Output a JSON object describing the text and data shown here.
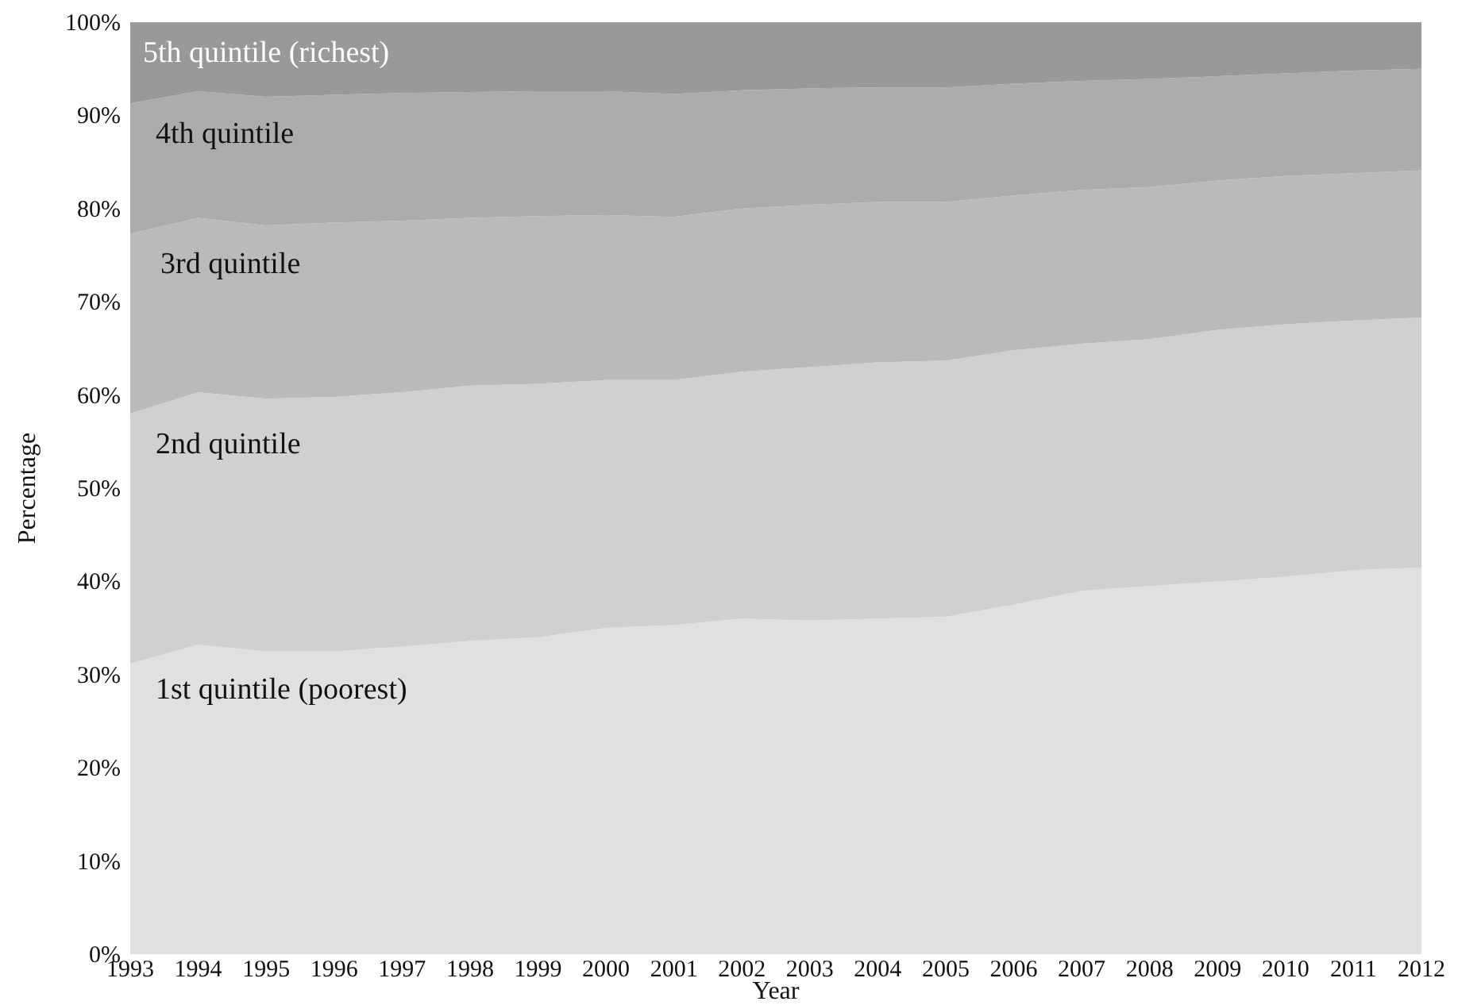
{
  "chart_data": {
    "type": "area",
    "stacked": true,
    "xlabel": "Year",
    "ylabel": "Percentage",
    "x": [
      1993,
      1994,
      1995,
      1996,
      1997,
      1998,
      1999,
      2000,
      2001,
      2002,
      2003,
      2004,
      2005,
      2006,
      2007,
      2008,
      2009,
      2010,
      2011,
      2012
    ],
    "xlim": [
      1993,
      2012
    ],
    "xticks": [
      1993,
      1994,
      1995,
      1996,
      1997,
      1998,
      1999,
      2000,
      2001,
      2002,
      2003,
      2004,
      2005,
      2006,
      2007,
      2008,
      2009,
      2010,
      2011,
      2012
    ],
    "ylim": [
      0,
      100
    ],
    "yticks": [
      {
        "value": 0,
        "label": "0%"
      },
      {
        "value": 10,
        "label": "10%"
      },
      {
        "value": 20,
        "label": "20%"
      },
      {
        "value": 30,
        "label": "30%"
      },
      {
        "value": 40,
        "label": "40%"
      },
      {
        "value": 50,
        "label": "50%"
      },
      {
        "value": 60,
        "label": "60%"
      },
      {
        "value": 70,
        "label": "70%"
      },
      {
        "value": 80,
        "label": "80%"
      },
      {
        "value": 90,
        "label": "90%"
      },
      {
        "value": 100,
        "label": "100%"
      }
    ],
    "grid": false,
    "legend": false,
    "series": [
      {
        "name": "1st quintile (poorest)",
        "color": "#e0e0e0",
        "values": [
          31.2,
          33.2,
          32.5,
          32.5,
          33,
          33.6,
          34,
          35,
          35.3,
          36,
          35.8,
          36,
          36.2,
          37.5,
          39,
          39.5,
          40,
          40.5,
          41.2,
          41.5
        ]
      },
      {
        "name": "2nd quintile",
        "color": "#cfd0cf",
        "values": [
          26.8,
          27.1,
          27.1,
          27.3,
          27.3,
          27.4,
          27.2,
          26.6,
          26.3,
          26.5,
          27.2,
          27.5,
          27.5,
          27.3,
          26.5,
          26.5,
          27,
          27.1,
          26.8,
          26.8
        ]
      },
      {
        "name": "3rd quintile",
        "color": "#bababa",
        "values": [
          19.3,
          18.7,
          18.6,
          18.7,
          18.4,
          18,
          18,
          17.7,
          17.5,
          17.5,
          17.4,
          17.2,
          17,
          16.6,
          16.5,
          16.3,
          16,
          15.9,
          15.8,
          15.8
        ]
      },
      {
        "name": "4th quintile",
        "color": "#acacac",
        "values": [
          14,
          13.6,
          13.8,
          13.7,
          13.7,
          13.5,
          13.4,
          13.3,
          13.2,
          12.7,
          12.5,
          12.3,
          12.3,
          12,
          11.7,
          11.6,
          11.2,
          11,
          11,
          10.9
        ]
      },
      {
        "name": "5th quintile (richest)",
        "color": "#999999",
        "values": [
          8.7,
          7.4,
          8,
          7.8,
          7.6,
          7.5,
          7.4,
          7.4,
          7.7,
          7.3,
          7.1,
          7,
          7,
          6.6,
          6.3,
          6.1,
          5.8,
          5.5,
          5.2,
          5
        ]
      }
    ]
  }
}
